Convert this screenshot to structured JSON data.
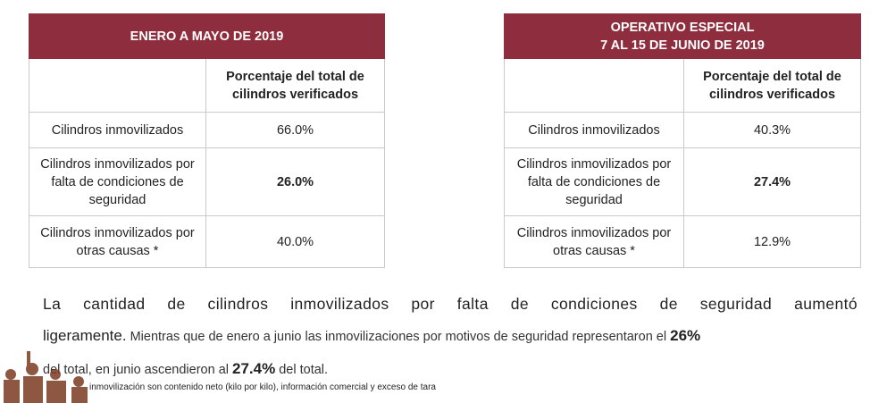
{
  "tables": [
    {
      "title": "ENERO A MAYO DE 2019",
      "column_header": "Porcentaje del total de cilindros verificados",
      "rows": [
        {
          "label": "Cilindros inmovilizados",
          "value": "66.0%"
        },
        {
          "label": "Cilindros inmovilizados por falta de condiciones de seguridad",
          "value": "26.0%"
        },
        {
          "label": "Cilindros inmovilizados por otras causas *",
          "value": "40.0%"
        }
      ]
    },
    {
      "title_line1": "OPERATIVO ESPECIAL",
      "title_line2": "7 AL 15 DE JUNIO DE 2019",
      "column_header": "Porcentaje del total de cilindros verificados",
      "rows": [
        {
          "label": "Cilindros inmovilizados",
          "value": "40.3%"
        },
        {
          "label": "Cilindros inmovilizados por falta de condiciones de seguridad",
          "value": "27.4%"
        },
        {
          "label": "Cilindros inmovilizados por otras causas *",
          "value": "12.9%"
        }
      ]
    }
  ],
  "paragraph": {
    "lead1": "La cantidad de cilindros inmovilizados por falta de condiciones de seguridad aumentó",
    "lead2": "ligeramente.",
    "text1": " Mientras que de enero a junio las inmovilizaciones por motivos de seguridad representaron el ",
    "pct1": "26%",
    "text2": "del total, en junio ascendieron al ",
    "pct2": "27.4%",
    "text3": " del total."
  },
  "footnote": "inmovilización son contenido neto (kilo por kilo), información comercial y exceso de tara",
  "colors": {
    "header_bg": "#8e2d3e"
  }
}
